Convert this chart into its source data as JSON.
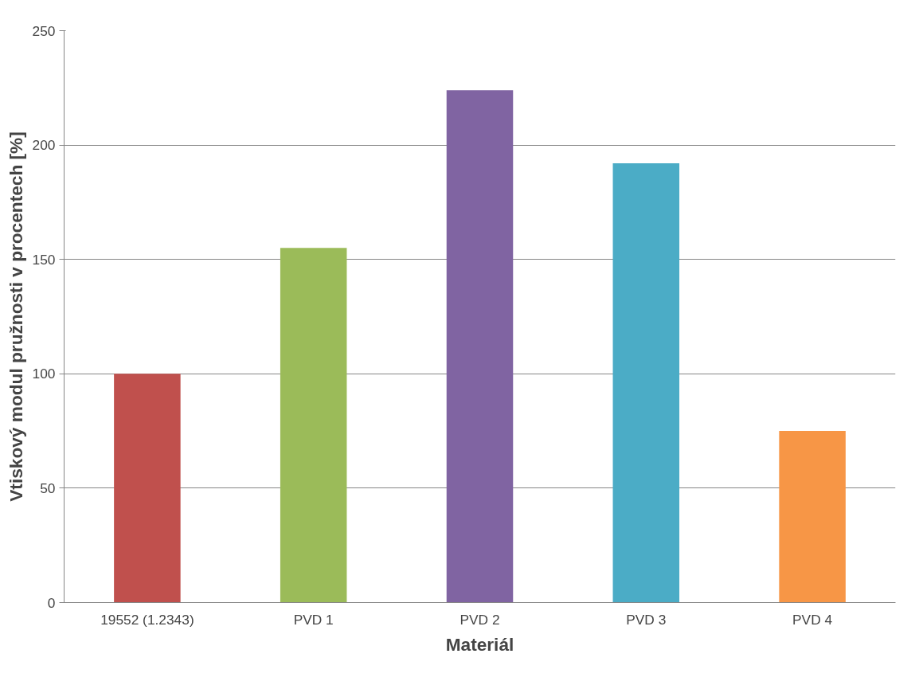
{
  "chart_data": {
    "type": "bar",
    "xlabel": "Materiál",
    "ylabel": "Vtiskový modul pružnosti v procentech [%]",
    "categories": [
      "19552 (1.2343)",
      "PVD 1",
      "PVD 2",
      "PVD 3",
      "PVD 4"
    ],
    "values": [
      100,
      155,
      224,
      192,
      75
    ],
    "colors": [
      "#c0504d",
      "#9bbb59",
      "#8064a2",
      "#4bacc6",
      "#f79646"
    ],
    "ylim": [
      0,
      250
    ],
    "yticks": [
      0,
      50,
      100,
      150,
      200,
      250
    ],
    "grid": "y"
  }
}
